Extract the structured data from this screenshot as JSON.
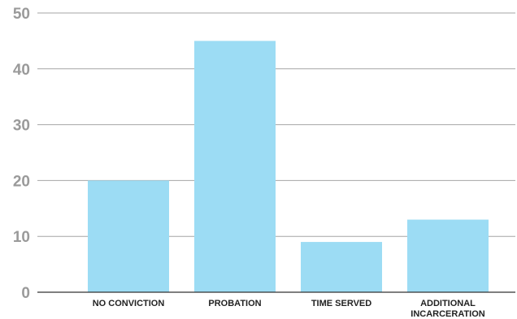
{
  "chart_data": {
    "type": "bar",
    "categories": [
      "NO CONVICTION",
      "PROBATION",
      "TIME SERVED",
      "ADDITIONAL\nINCARCERATION"
    ],
    "values": [
      20,
      45,
      9,
      13
    ],
    "title": "",
    "xlabel": "",
    "ylabel": "",
    "ylim": [
      0,
      50
    ],
    "yticks": [
      0,
      10,
      20,
      30,
      40,
      50
    ],
    "grid": true,
    "legend": "none",
    "colors": {
      "bar": "#9cdcf4",
      "grid": "#a6a6a6",
      "axis": "#333333",
      "tick_text": "#9a9a9a",
      "category_text": "#222222"
    }
  }
}
